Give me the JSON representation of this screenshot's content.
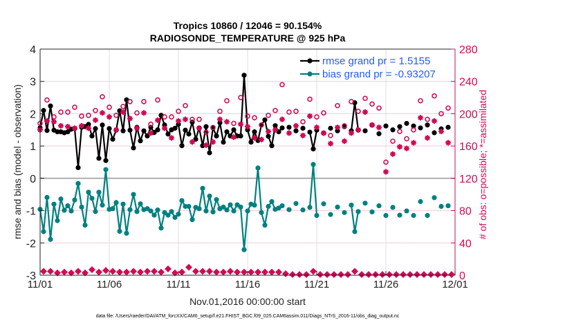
{
  "chart_data": {
    "type": "line",
    "title_line1": "Tropics 10860 / 12046 = 90.154%",
    "title_line2": "RADIOSONDE_TEMPERATURE @ 925 hPa",
    "xlabel": "Nov.01,2016 00:00:00 start",
    "ylabel": "rmse and bias (model - observation)",
    "ylabel_right": "# of obs: o=possible; *=assimilated",
    "footer": "data file: /Users/raeder/DAI/ATM_forcXX/CAM6_setup/f.e21.FHIST_BGC.f09_025.CAM6assim.011/Diags_NTrS_2016-11/obs_diag_output.nc",
    "ylim": [
      -3,
      4
    ],
    "ylim_right": [
      0,
      280
    ],
    "yticks": [
      "-3",
      "-2",
      "-1",
      "0",
      "1",
      "2",
      "3",
      "4"
    ],
    "yticks_right": [
      "0",
      "40",
      "80",
      "120",
      "160",
      "200",
      "240",
      "280"
    ],
    "xticks": [
      "11/01",
      "11/06",
      "11/11",
      "11/16",
      "11/21",
      "11/26",
      "12/01"
    ],
    "xlim": [
      "11/01 00:00",
      "12/01 00:00"
    ],
    "grid": true,
    "legend_placement": "top-right",
    "colors": {
      "rmse": "#000000",
      "bias": "#008080",
      "obs": "#d10a55",
      "legend_text": "#1f5cff",
      "zero_line": "#b0b0b0"
    },
    "legend": [
      {
        "key": "rmse",
        "label": "rmse grand pr = 1.5155"
      },
      {
        "key": "bias",
        "label": "bias grand pr = -0.93207"
      }
    ],
    "times": [
      "11/01 00:00",
      "11/01 06:00",
      "11/01 12:00",
      "11/01 18:00",
      "11/02 00:00",
      "11/02 06:00",
      "11/02 12:00",
      "11/02 18:00",
      "11/03 00:00",
      "11/03 06:00",
      "11/03 12:00",
      "11/03 18:00",
      "11/04 00:00",
      "11/04 06:00",
      "11/04 12:00",
      "11/04 18:00",
      "11/05 00:00",
      "11/05 06:00",
      "11/05 12:00",
      "11/05 18:00",
      "11/06 00:00",
      "11/06 06:00",
      "11/06 12:00",
      "11/06 18:00",
      "11/07 00:00",
      "11/07 06:00",
      "11/07 12:00",
      "11/07 18:00",
      "11/08 00:00",
      "11/08 06:00",
      "11/08 12:00",
      "11/08 18:00",
      "11/09 00:00",
      "11/09 06:00",
      "11/09 12:00",
      "11/09 18:00",
      "11/10 00:00",
      "11/10 06:00",
      "11/10 12:00",
      "11/10 18:00",
      "11/11 00:00",
      "11/11 06:00",
      "11/11 12:00",
      "11/11 18:00",
      "11/12 00:00",
      "11/12 06:00",
      "11/12 12:00",
      "11/12 18:00",
      "11/13 00:00",
      "11/13 06:00",
      "11/13 12:00",
      "11/13 18:00",
      "11/14 00:00",
      "11/14 06:00",
      "11/14 12:00",
      "11/14 18:00",
      "11/15 00:00",
      "11/15 06:00",
      "11/15 12:00",
      "11/15 18:00",
      "11/16 00:00",
      "11/16 06:00",
      "11/16 12:00",
      "11/16 18:00",
      "11/17 00:00",
      "11/17 06:00",
      "11/17 12:00",
      "11/17 18:00",
      "11/18 00:00",
      "11/18 06:00",
      "11/18 12:00",
      "11/18 18:00",
      "11/19 00:00",
      "11/19 06:00",
      "11/19 12:00",
      "11/19 18:00",
      "11/20 00:00",
      "11/20 06:00",
      "11/20 12:00",
      "11/20 18:00",
      "11/21 00:00",
      "11/21 06:00",
      "11/21 12:00",
      "11/21 18:00",
      "11/22 00:00",
      "11/22 06:00",
      "11/22 12:00",
      "11/22 18:00",
      "11/23 00:00",
      "11/23 06:00",
      "11/23 12:00",
      "11/23 18:00",
      "11/24 00:00",
      "11/24 06:00",
      "11/24 12:00",
      "11/24 18:00",
      "11/25 00:00",
      "11/25 06:00",
      "11/25 12:00",
      "11/25 18:00",
      "11/26 00:00",
      "11/26 06:00",
      "11/26 12:00",
      "11/26 18:00",
      "11/27 00:00",
      "11/27 06:00",
      "11/27 12:00",
      "11/27 18:00",
      "11/28 00:00",
      "11/28 06:00",
      "11/28 12:00",
      "11/28 18:00",
      "11/29 00:00",
      "11/29 06:00",
      "11/29 12:00",
      "11/29 18:00",
      "11/30 00:00",
      "11/30 06:00",
      "11/30 12:00",
      "11/30 18:00",
      "12/01 00:00"
    ],
    "series": [
      {
        "key": "rmse",
        "axis": "left",
        "name": "rmse grand pr = 1.5155",
        "values": [
          1.56,
          2.1,
          1.48,
          2.24,
          1.49,
          1.44,
          1.44,
          1.41,
          1.44,
          1.52,
          1.54,
          0.33,
          1.58,
          1.6,
          1.67,
          1.31,
          1.54,
          0.62,
          1.65,
          0.55,
          1.54,
          1.21,
          1.49,
          2.09,
          1.47,
          2.43,
          1.49,
          0.94,
          1.58,
          1.16,
          1.47,
          1.31,
          1.58,
          1.42,
          1.5,
          1.95,
          1.65,
          1.37,
          1.5,
          1.55,
          1.67,
          1.01,
          1.49,
          1.37,
          1.74,
          1.21,
          1.56,
          1.01,
          1.6,
          0.79,
          1.56,
          1.31,
          1.72,
          1.12,
          1.44,
          1.31,
          1.5,
          1.31,
          1.31,
          3.19,
          1.5,
          1.12,
          1.44,
          1.17,
          1.65,
          1.81,
          1.3,
          1.01,
          1.63,
          1.44,
          1.56,
          null,
          1.58,
          null,
          1.47,
          null,
          1.55,
          null,
          1.43,
          0.91,
          1.49,
          null,
          1.4,
          null,
          1.55,
          null,
          1.47,
          null,
          1.6,
          null,
          1.47,
          2.34,
          1.49,
          null,
          1.47,
          null,
          1.65,
          null,
          1.38,
          null,
          1.62,
          null,
          1.5,
          null,
          1.6,
          null,
          1.7,
          null,
          1.62,
          null,
          1.56,
          null,
          1.65,
          null,
          1.41,
          null,
          1.53,
          null,
          1.58,
          null,
          null
        ]
      },
      {
        "key": "bias",
        "axis": "left",
        "name": "bias grand pr = -0.93207",
        "values": [
          -0.96,
          -1.65,
          -0.59,
          -1.89,
          -0.8,
          -1.31,
          -0.64,
          -0.99,
          -0.85,
          -1.01,
          -0.67,
          -0.16,
          -0.89,
          -1.45,
          -0.43,
          -0.62,
          -1.03,
          -0.43,
          -0.83,
          0.27,
          -0.96,
          -0.94,
          -0.75,
          -1.64,
          -0.8,
          -1.7,
          -0.97,
          -0.5,
          -1.03,
          -0.79,
          -0.97,
          -0.94,
          -1.01,
          -1.14,
          -0.98,
          -1.54,
          -1.06,
          -1.14,
          -1.03,
          -1.21,
          -1.11,
          -0.69,
          -0.87,
          -0.87,
          -1.28,
          -0.9,
          -0.94,
          -0.31,
          -1.01,
          -0.55,
          -1.04,
          -0.66,
          -0.94,
          -0.89,
          -0.98,
          -0.82,
          -1.01,
          -0.82,
          -0.89,
          -2.21,
          -1.01,
          -0.8,
          -0.83,
          0.32,
          -1.06,
          -1.45,
          -0.87,
          -0.72,
          -0.96,
          -0.92,
          -0.85,
          null,
          -0.97,
          null,
          -0.78,
          null,
          -0.98,
          null,
          -0.9,
          0.43,
          -1.15,
          null,
          -0.79,
          null,
          -1.12,
          null,
          -0.89,
          null,
          -1.06,
          null,
          -0.83,
          -1.65,
          -1.03,
          null,
          -0.77,
          null,
          -1.04,
          null,
          -0.85,
          null,
          -1.15,
          null,
          -0.9,
          null,
          -1.14,
          null,
          -1.01,
          null,
          -1.15,
          null,
          -0.72,
          null,
          -1.15,
          null,
          -0.6,
          null,
          -0.87,
          null,
          -0.85,
          null,
          null
        ]
      },
      {
        "key": "possible",
        "axis": "right",
        "marker": "o",
        "values": [
          188,
          null,
          217,
          null,
          196,
          null,
          202,
          null,
          202,
          null,
          208,
          null,
          197,
          null,
          198,
          null,
          204,
          null,
          221,
          null,
          208,
          null,
          198,
          null,
          209,
          null,
          215,
          null,
          201,
          null,
          215,
          null,
          187,
          null,
          217,
          null,
          196,
          null,
          196,
          null,
          203,
          null,
          210,
          null,
          193,
          null,
          193,
          null,
          177,
          null,
          183,
          null,
          203,
          null,
          216,
          null,
          188,
          null,
          220,
          null,
          197,
          null,
          195,
          null,
          186,
          null,
          198,
          null,
          204,
          null,
          236,
          null,
          202,
          null,
          203,
          null,
          190,
          null,
          218,
          null,
          196,
          null,
          201,
          null,
          173,
          null,
          210,
          null,
          185,
          null,
          215,
          null,
          203,
          null,
          219,
          null,
          212,
          null,
          207,
          null,
          140,
          null,
          166,
          null,
          178,
          null,
          169,
          null,
          180,
          null,
          216,
          null,
          193,
          null,
          222,
          null,
          200,
          null,
          207,
          null,
          null
        ]
      },
      {
        "key": "assimilated",
        "axis": "right",
        "marker": "*",
        "values": [
          180,
          null,
          191,
          null,
          190,
          null,
          185,
          null,
          184,
          null,
          182,
          null,
          185,
          null,
          182,
          null,
          192,
          null,
          201,
          null,
          196,
          null,
          180,
          null,
          202,
          null,
          194,
          null,
          182,
          null,
          201,
          null,
          176,
          null,
          192,
          null,
          182,
          null,
          170,
          null,
          191,
          null,
          193,
          null,
          165,
          null,
          182,
          null,
          161,
          null,
          165,
          null,
          193,
          null,
          190,
          null,
          171,
          null,
          187,
          null,
          184,
          null,
          170,
          null,
          168,
          null,
          178,
          null,
          180,
          null,
          193,
          null,
          176,
          null,
          185,
          null,
          173,
          null,
          197,
          null,
          183,
          null,
          176,
          null,
          163,
          null,
          183,
          null,
          166,
          null,
          176,
          null,
          180,
          null,
          202,
          null,
          186,
          null,
          183,
          null,
          128,
          null,
          150,
          null,
          159,
          null,
          157,
          null,
          164,
          null,
          195,
          null,
          170,
          null,
          191,
          null,
          178,
          null,
          164,
          null,
          null
        ]
      },
      {
        "key": "bottom",
        "axis": "right",
        "marker": "diamond",
        "values": [
          null,
          4,
          null,
          4,
          null,
          2,
          null,
          3,
          null,
          2,
          null,
          4,
          null,
          2,
          null,
          6,
          null,
          3,
          null,
          5,
          null,
          4,
          null,
          3,
          null,
          3,
          null,
          4,
          null,
          3,
          null,
          4,
          null,
          4,
          null,
          3,
          null,
          7,
          null,
          2,
          null,
          3,
          null,
          9,
          null,
          4,
          null,
          4,
          null,
          4,
          null,
          3,
          null,
          3,
          null,
          4,
          null,
          3,
          null,
          3,
          null,
          3,
          null,
          3,
          null,
          3,
          null,
          3,
          null,
          3,
          null,
          1,
          null,
          0,
          null,
          0,
          null,
          0,
          null,
          4,
          null,
          0,
          null,
          0,
          null,
          0,
          null,
          0,
          null,
          0,
          null,
          4,
          null,
          0,
          null,
          0,
          null,
          0,
          null,
          0,
          null,
          0,
          null,
          0,
          null,
          0,
          null,
          0,
          null,
          0,
          null,
          0,
          null,
          0,
          null,
          0,
          null,
          0,
          null,
          0,
          null
        ]
      }
    ]
  }
}
